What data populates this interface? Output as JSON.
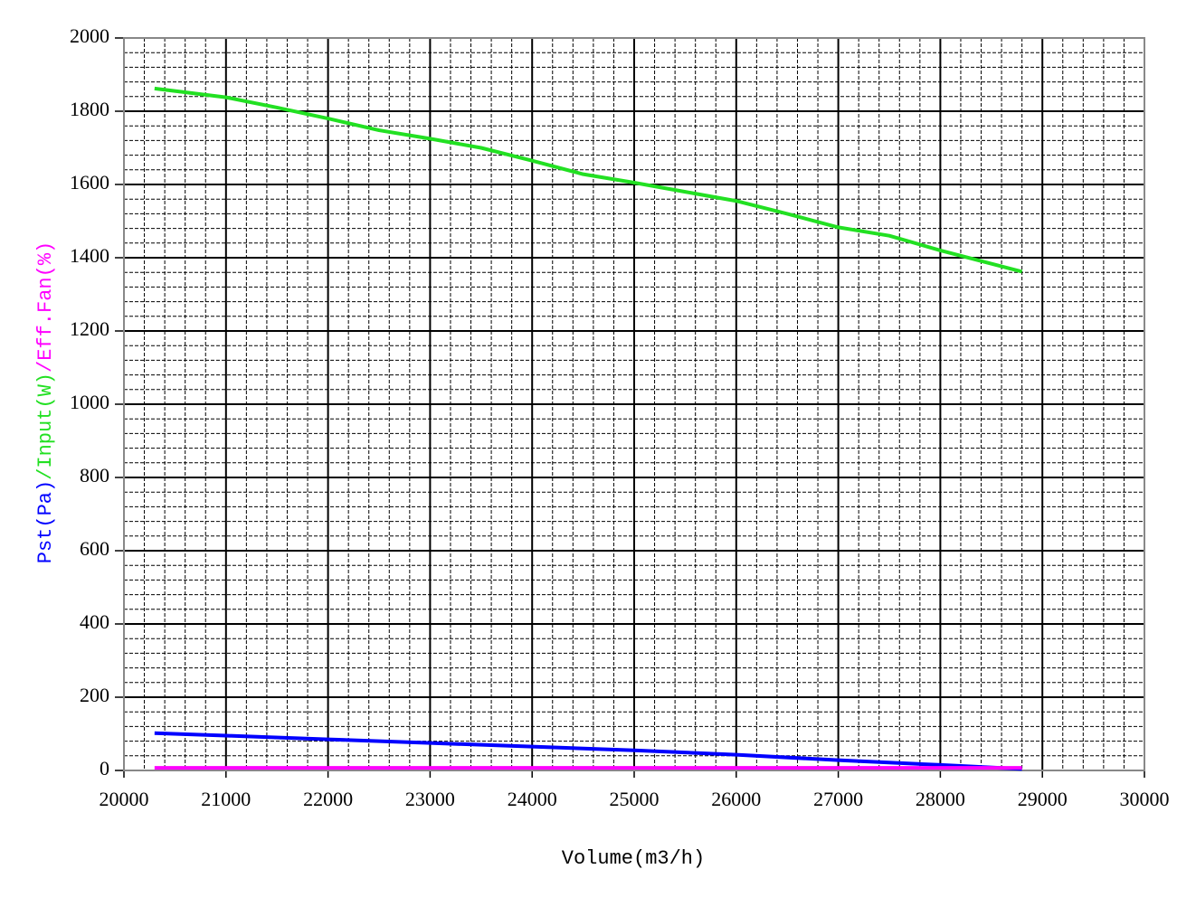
{
  "chart_data": {
    "type": "line",
    "x_label": "Volume(m3/h)",
    "y_label_separator": "/",
    "xlim": [
      20000,
      30000
    ],
    "xticks": [
      20000,
      21000,
      22000,
      23000,
      24000,
      25000,
      26000,
      27000,
      28000,
      29000,
      30000
    ],
    "ylim": [
      0,
      2000
    ],
    "yticks": [
      0,
      200,
      400,
      600,
      800,
      1000,
      1200,
      1400,
      1600,
      1800,
      2000
    ],
    "grid": true,
    "minor_grid_divisions": 5,
    "series": [
      {
        "name": "Pst(Pa)",
        "color": "#0000ff",
        "x": [
          20300,
          21000,
          22000,
          23000,
          24000,
          25000,
          26000,
          27000,
          28000,
          28800
        ],
        "values": [
          102,
          95,
          85,
          75,
          65,
          55,
          43,
          28,
          15,
          4
        ]
      },
      {
        "name": "Input(W)",
        "color": "#22e022",
        "x": [
          20300,
          21000,
          21500,
          22000,
          22500,
          23000,
          23500,
          24000,
          24500,
          25000,
          25500,
          26000,
          26500,
          27000,
          27500,
          28000,
          28800
        ],
        "values": [
          1862,
          1838,
          1810,
          1780,
          1748,
          1725,
          1700,
          1665,
          1628,
          1605,
          1580,
          1555,
          1520,
          1483,
          1460,
          1420,
          1362
        ]
      },
      {
        "name": "Eff.Fan(%)",
        "color": "#ff00ff",
        "x": [
          20300,
          28800
        ],
        "values": [
          7,
          7
        ]
      }
    ]
  }
}
